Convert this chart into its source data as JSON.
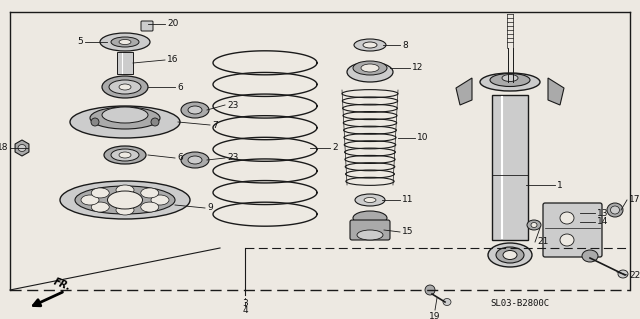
{
  "bg_color": "#ede9e2",
  "line_color": "#1a1a1a",
  "text_color": "#111111",
  "diagram_code": "SL03-B2800C",
  "fr_label": "FR.",
  "figsize": [
    6.4,
    3.19
  ],
  "dpi": 100
}
